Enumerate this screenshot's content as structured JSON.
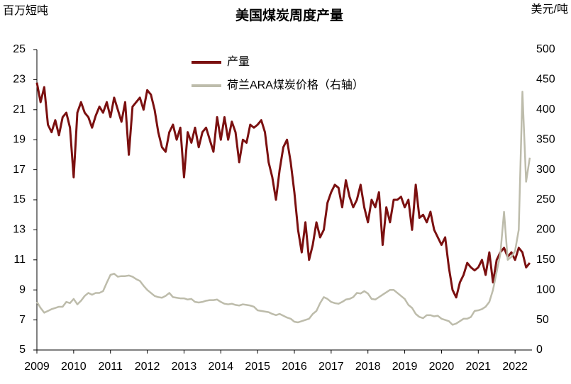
{
  "chart_data": {
    "type": "line",
    "title": "美国煤炭周度产量",
    "y_label": "百万短吨",
    "y2_label": "美元/吨",
    "legend_position": "top-center",
    "x": [
      2009.0,
      2009.1,
      2009.2,
      2009.3,
      2009.4,
      2009.5,
      2009.6,
      2009.7,
      2009.8,
      2009.9,
      2010.0,
      2010.1,
      2010.2,
      2010.3,
      2010.4,
      2010.5,
      2010.6,
      2010.7,
      2010.8,
      2010.9,
      2011.0,
      2011.1,
      2011.2,
      2011.3,
      2011.4,
      2011.5,
      2011.6,
      2011.7,
      2011.8,
      2011.9,
      2012.0,
      2012.1,
      2012.2,
      2012.3,
      2012.4,
      2012.5,
      2012.6,
      2012.7,
      2012.8,
      2012.9,
      2013.0,
      2013.1,
      2013.2,
      2013.3,
      2013.4,
      2013.5,
      2013.6,
      2013.7,
      2013.8,
      2013.9,
      2014.0,
      2014.1,
      2014.2,
      2014.3,
      2014.4,
      2014.5,
      2014.6,
      2014.7,
      2014.8,
      2014.9,
      2015.0,
      2015.1,
      2015.2,
      2015.3,
      2015.4,
      2015.5,
      2015.6,
      2015.7,
      2015.8,
      2015.9,
      2016.0,
      2016.1,
      2016.2,
      2016.3,
      2016.4,
      2016.5,
      2016.6,
      2016.7,
      2016.8,
      2016.9,
      2017.0,
      2017.1,
      2017.2,
      2017.3,
      2017.4,
      2017.5,
      2017.6,
      2017.7,
      2017.8,
      2017.9,
      2018.0,
      2018.1,
      2018.2,
      2018.3,
      2018.4,
      2018.5,
      2018.6,
      2018.7,
      2018.8,
      2018.9,
      2019.0,
      2019.1,
      2019.2,
      2019.3,
      2019.4,
      2019.5,
      2019.6,
      2019.7,
      2019.8,
      2019.9,
      2020.0,
      2020.1,
      2020.2,
      2020.3,
      2020.4,
      2020.5,
      2020.6,
      2020.7,
      2020.8,
      2020.9,
      2021.0,
      2021.1,
      2021.2,
      2021.3,
      2021.4,
      2021.5,
      2021.6,
      2021.7,
      2021.8,
      2021.9,
      2022.0,
      2022.1,
      2022.2,
      2022.3,
      2022.4
    ],
    "xlim": [
      2009,
      2022.46
    ],
    "xticks": [
      2009,
      2010,
      2011,
      2012,
      2013,
      2014,
      2015,
      2016,
      2017,
      2018,
      2019,
      2020,
      2021,
      2022
    ],
    "ylim": [
      5,
      25
    ],
    "yticks": [
      5,
      7,
      9,
      11,
      13,
      15,
      17,
      19,
      21,
      23,
      25
    ],
    "y2lim": [
      0,
      500
    ],
    "y2ticks": [
      0,
      50,
      100,
      150,
      200,
      250,
      300,
      350,
      400,
      450,
      500
    ],
    "grid": false,
    "series": [
      {
        "name": "产量",
        "color": "#7b1010",
        "axis": "y",
        "values": [
          22.8,
          21.5,
          22.5,
          20.0,
          19.5,
          20.3,
          19.3,
          20.5,
          20.8,
          19.8,
          16.5,
          20.8,
          21.5,
          20.8,
          20.5,
          19.8,
          20.6,
          21.2,
          20.8,
          21.5,
          20.5,
          21.8,
          21.0,
          20.2,
          21.5,
          18.0,
          21.2,
          21.5,
          21.8,
          21.0,
          22.3,
          22.0,
          21.0,
          19.5,
          18.5,
          18.2,
          19.5,
          20.0,
          19.0,
          19.8,
          16.5,
          19.5,
          18.8,
          19.8,
          18.5,
          19.5,
          19.8,
          19.0,
          18.2,
          20.5,
          19.0,
          20.5,
          19.0,
          20.2,
          19.5,
          17.5,
          19.0,
          18.8,
          20.0,
          19.8,
          20.0,
          20.3,
          19.5,
          17.5,
          16.5,
          15.0,
          17.0,
          18.5,
          19.0,
          17.5,
          15.5,
          13.0,
          11.5,
          13.5,
          11.0,
          12.0,
          13.5,
          12.5,
          13.0,
          14.8,
          15.5,
          16.0,
          15.8,
          14.5,
          16.3,
          15.2,
          14.5,
          15.0,
          16.0,
          14.5,
          13.5,
          15.0,
          14.5,
          15.5,
          12.0,
          14.5,
          13.5,
          15.0,
          15.0,
          15.2,
          14.5,
          15.0,
          13.0,
          16.0,
          13.8,
          14.0,
          13.5,
          14.2,
          13.0,
          12.5,
          12.0,
          12.5,
          10.5,
          9.0,
          8.5,
          9.5,
          10.0,
          10.8,
          10.5,
          10.3,
          10.5,
          11.0,
          10.0,
          11.5,
          9.5,
          11.0,
          11.5,
          11.8,
          11.2,
          11.5,
          11.0,
          11.8,
          11.5,
          10.5,
          10.8
        ]
      },
      {
        "name": "荷兰ARA煤炭价格（右轴）",
        "color": "#bdbcab",
        "axis": "y2",
        "values": [
          80,
          70,
          62,
          65,
          68,
          70,
          72,
          72,
          80,
          78,
          85,
          76,
          82,
          90,
          95,
          92,
          95,
          95,
          98,
          112,
          125,
          127,
          122,
          123,
          123,
          124,
          122,
          118,
          115,
          107,
          100,
          95,
          90,
          88,
          87,
          90,
          95,
          88,
          87,
          86,
          86,
          84,
          85,
          80,
          79,
          80,
          82,
          83,
          83,
          84,
          80,
          77,
          76,
          77,
          75,
          74,
          76,
          75,
          74,
          72,
          66,
          65,
          64,
          63,
          60,
          58,
          60,
          57,
          54,
          52,
          47,
          46,
          48,
          50,
          52,
          60,
          65,
          78,
          88,
          85,
          80,
          78,
          77,
          80,
          84,
          85,
          88,
          95,
          94,
          98,
          94,
          85,
          84,
          88,
          92,
          96,
          100,
          100,
          95,
          90,
          85,
          75,
          70,
          60,
          55,
          53,
          58,
          58,
          56,
          57,
          52,
          50,
          48,
          42,
          44,
          48,
          52,
          52,
          55,
          65,
          66,
          68,
          72,
          80,
          100,
          130,
          160,
          230,
          150,
          155,
          165,
          200,
          430,
          280,
          320
        ]
      }
    ]
  }
}
